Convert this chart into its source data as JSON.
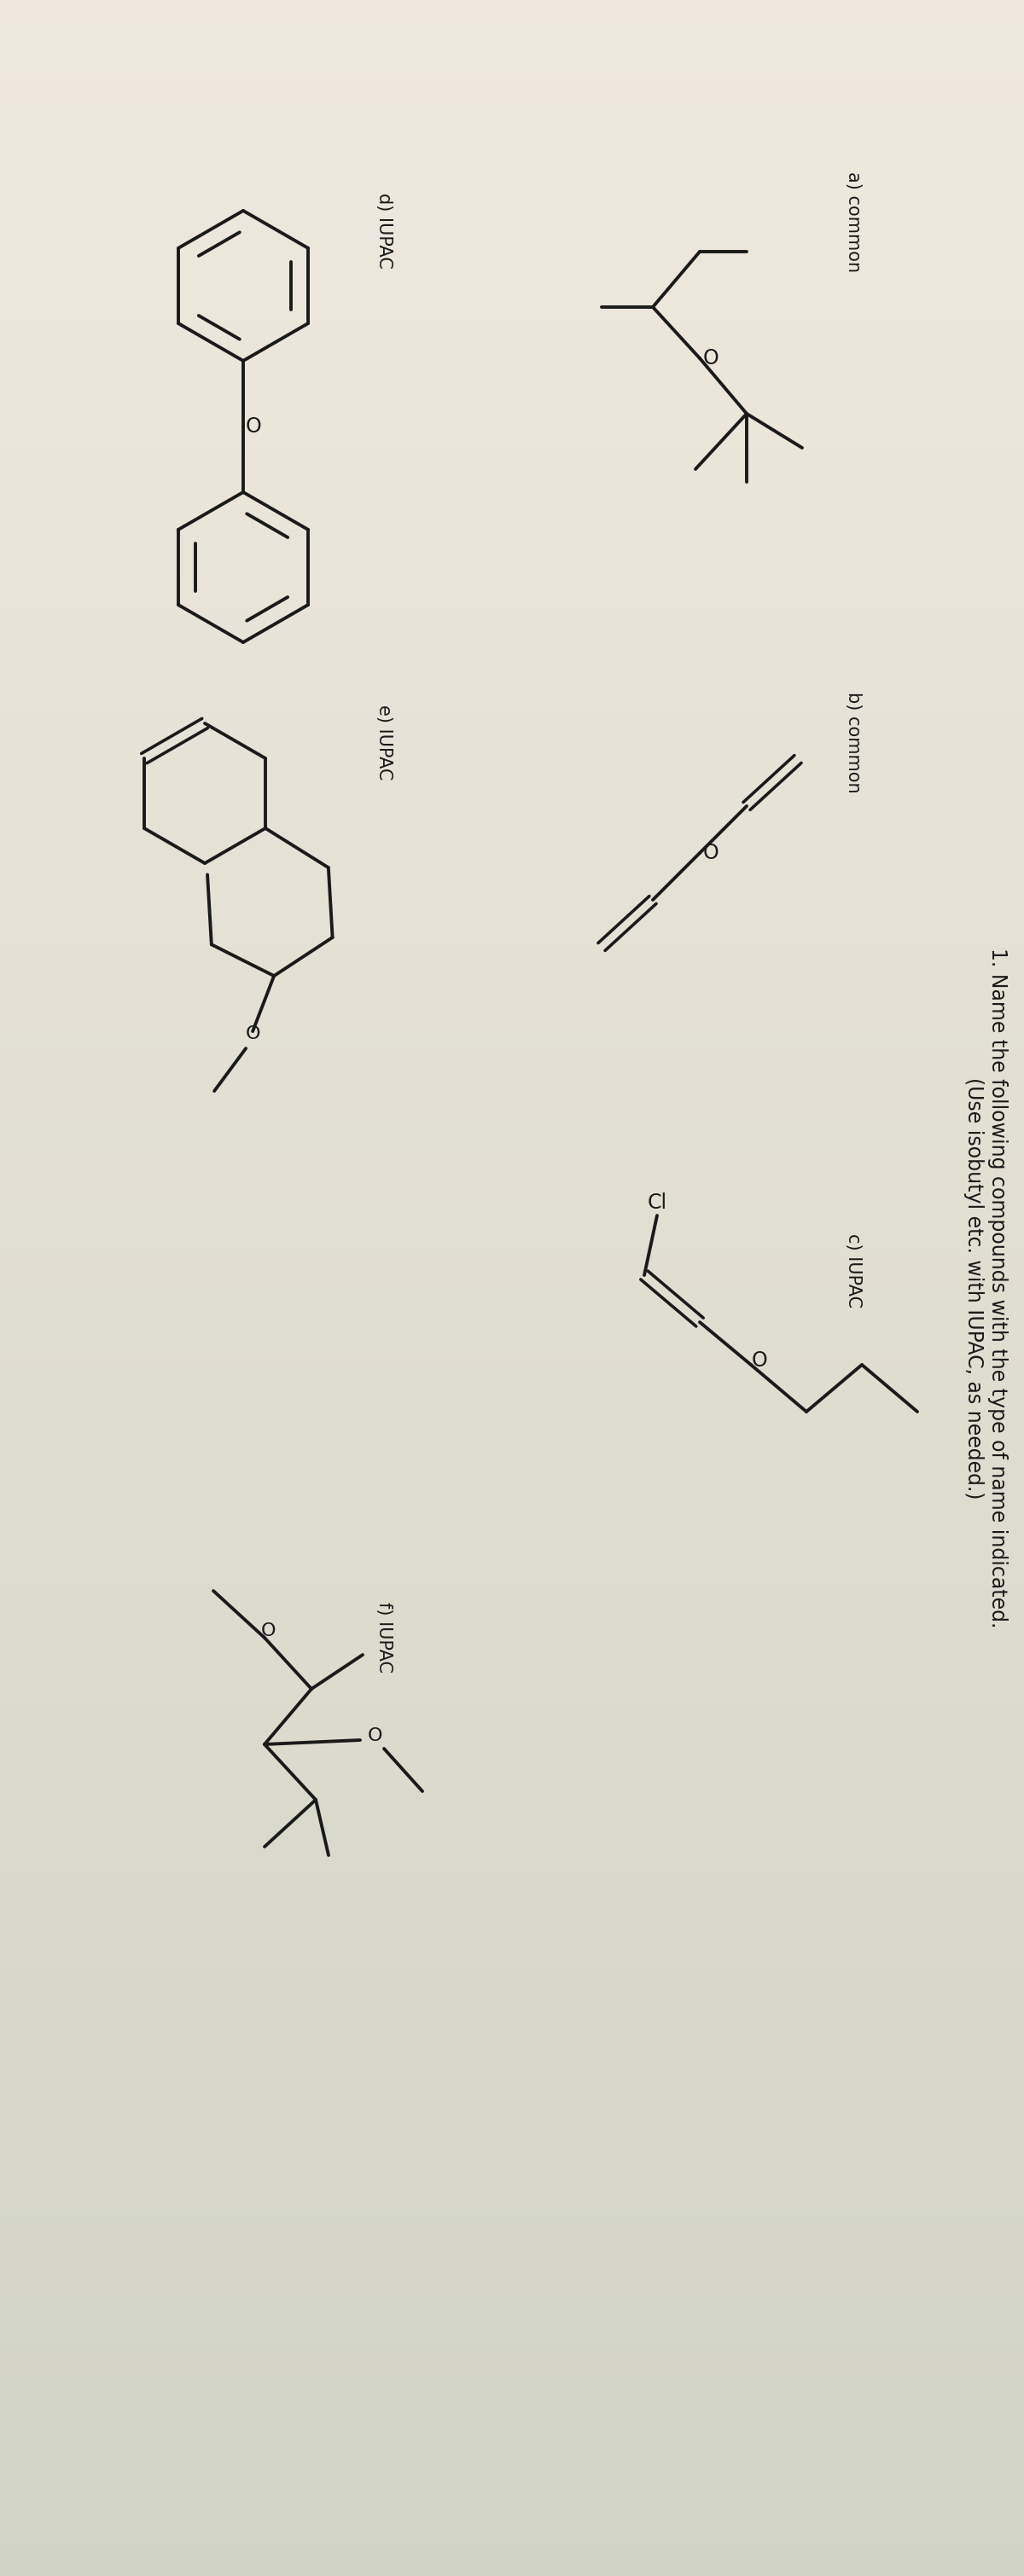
{
  "title": "1. Name the following compounds with the type of name indicated. (Use isobutyl etc. with IUPAC, as needed.)",
  "label_a": "a) common",
  "label_b": "b) common",
  "label_c": "c) IUPAC",
  "label_d": "d) IUPAC",
  "label_e": "e) IUPAC",
  "label_f": "f) IUPAC",
  "line_color": "#1a1a1a",
  "line_width": 2.8,
  "font_size_title": 17,
  "font_size_label": 15,
  "font_size_atom": 17,
  "bg_color": "#cbbfaf"
}
